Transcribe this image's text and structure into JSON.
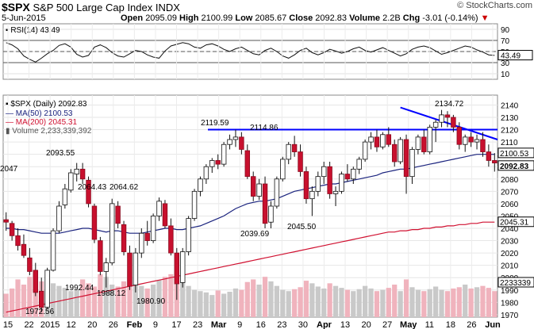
{
  "header": {
    "ticker": "$SPX",
    "name": "S&P 500 Large Cap Index",
    "exchange": "INDX",
    "date": "5-Jun-2015",
    "open_label": "Open",
    "open": "2095.09",
    "high_label": "High",
    "high": "2100.99",
    "low_label": "Low",
    "low": "2085.67",
    "close_label": "Close",
    "close": "2092.83",
    "volume_label": "Volume",
    "volume": "2.2B",
    "chg_label": "Chg",
    "chg": "-3.01 (-0.14%)",
    "brand": "© StockCharts.com"
  },
  "chart_data": {
    "type": "candlestick",
    "x_tick_labels": [
      "15",
      "22",
      "2015",
      "12",
      "20",
      "26",
      "Feb",
      "9",
      "17",
      "23",
      "Mar",
      "9",
      "16",
      "23",
      "30",
      "Apr",
      "13",
      "20",
      "27",
      "May",
      "11",
      "18",
      "26",
      "Jun"
    ],
    "rsi": {
      "label": "RSI(14)",
      "value": "43.49",
      "ticks": [
        "90",
        "70",
        "50",
        "30",
        "10"
      ],
      "ylim": [
        0,
        100
      ],
      "levels": [
        70,
        50,
        30
      ],
      "values": [
        66,
        62,
        55,
        42,
        36,
        31,
        38,
        46,
        52,
        61,
        64,
        58,
        45,
        40,
        43,
        58,
        62,
        57,
        48,
        42,
        40,
        46,
        52,
        50,
        44,
        40,
        38,
        51,
        60,
        63,
        66,
        64,
        58,
        56,
        62,
        64,
        60,
        54,
        50,
        55,
        58,
        52,
        46,
        44,
        52,
        56,
        50,
        42,
        38,
        44,
        52,
        56,
        48,
        44,
        48,
        54,
        51,
        47,
        50,
        55,
        58,
        52,
        49,
        53,
        57,
        52,
        47,
        42,
        46,
        54,
        58,
        60,
        57,
        51,
        45,
        48,
        52,
        56,
        60,
        58,
        53,
        49,
        44,
        43
      ]
    },
    "price": {
      "legend_main": "$SPX (Daily) 2092.83",
      "legend_ma50": "MA(50) 2100.53",
      "legend_ma200": "MA(200) 2045.31",
      "legend_volume": "Volume 2,233,339,392",
      "ylim": [
        1968,
        2148
      ],
      "y_ticks": [
        "2140",
        "2130",
        "2120",
        "2110",
        "2100",
        "2090",
        "2080",
        "2070",
        "2060",
        "2050",
        "2040",
        "2030",
        "2020",
        "2010",
        "2000",
        "1990",
        "1980",
        "1970"
      ],
      "resistance": 2120,
      "trendline": {
        "from": 2138,
        "to": 2112
      },
      "annotations": [
        "2119.59",
        "2114.86",
        "2134.72",
        "2093.55",
        "2064.43",
        "2064.62",
        "2039.69",
        "2045.50",
        "1992.44",
        "1988.12",
        "1980.90",
        "1972.56",
        "2047"
      ],
      "right_labels": {
        "ma50": "2100.53",
        "close": "2092.83",
        "ma200": "2045.31",
        "volume": "2233339"
      },
      "ohlc": [
        [
          2047,
          2053,
          2038,
          2045
        ],
        [
          2044,
          2046,
          2030,
          2034
        ],
        [
          2034,
          2040,
          2022,
          2026
        ],
        [
          2027,
          2035,
          2016,
          2018
        ],
        [
          2016,
          2024,
          2002,
          2005
        ],
        [
          2006,
          2012,
          1985,
          1988
        ],
        [
          1989,
          2000,
          1972,
          1976
        ],
        [
          1976,
          2008,
          1975,
          2006
        ],
        [
          2006,
          2040,
          2005,
          2038
        ],
        [
          2038,
          2062,
          2036,
          2058
        ],
        [
          2059,
          2076,
          2056,
          2072
        ],
        [
          2071,
          2088,
          2069,
          2085
        ],
        [
          2084,
          2093,
          2078,
          2088
        ],
        [
          2088,
          2093,
          2076,
          2080
        ],
        [
          2079,
          2082,
          2057,
          2060
        ],
        [
          2058,
          2060,
          2028,
          2031
        ],
        [
          2030,
          2033,
          2002,
          2005
        ],
        [
          2005,
          2016,
          1992,
          2012
        ],
        [
          2012,
          2064,
          2010,
          2060
        ],
        [
          2058,
          2062,
          2040,
          2044
        ],
        [
          2043,
          2046,
          2018,
          2021
        ],
        [
          2020,
          2026,
          1990,
          1993
        ],
        [
          1994,
          2024,
          1988,
          2020
        ],
        [
          2020,
          2040,
          2016,
          2036
        ],
        [
          2036,
          2046,
          2026,
          2030
        ],
        [
          2030,
          2052,
          2028,
          2050
        ],
        [
          2050,
          2065,
          2046,
          2062
        ],
        [
          2060,
          2063,
          2040,
          2042
        ],
        [
          2042,
          2048,
          2018,
          2020
        ],
        [
          2020,
          2024,
          1982,
          1995
        ],
        [
          1996,
          2024,
          1992,
          2021
        ],
        [
          2021,
          2050,
          2018,
          2048
        ],
        [
          2048,
          2072,
          2046,
          2070
        ],
        [
          2070,
          2082,
          2066,
          2080
        ],
        [
          2080,
          2092,
          2076,
          2090
        ],
        [
          2090,
          2097,
          2085,
          2095
        ],
        [
          2095,
          2100,
          2088,
          2092
        ],
        [
          2092,
          2110,
          2090,
          2108
        ],
        [
          2108,
          2116,
          2104,
          2112
        ],
        [
          2112,
          2120,
          2106,
          2114
        ],
        [
          2114,
          2118,
          2100,
          2104
        ],
        [
          2103,
          2108,
          2080,
          2082
        ],
        [
          2082,
          2086,
          2062,
          2066
        ],
        [
          2066,
          2080,
          2063,
          2076
        ],
        [
          2076,
          2082,
          2040,
          2044
        ],
        [
          2045,
          2062,
          2040,
          2058
        ],
        [
          2058,
          2082,
          2056,
          2080
        ],
        [
          2080,
          2098,
          2078,
          2096
        ],
        [
          2096,
          2110,
          2092,
          2108
        ],
        [
          2108,
          2115,
          2098,
          2102
        ],
        [
          2102,
          2108,
          2082,
          2086
        ],
        [
          2086,
          2090,
          2060,
          2064
        ],
        [
          2064,
          2074,
          2050,
          2070
        ],
        [
          2070,
          2086,
          2066,
          2082
        ],
        [
          2082,
          2094,
          2076,
          2090
        ],
        [
          2090,
          2094,
          2064,
          2068
        ],
        [
          2068,
          2074,
          2058,
          2070
        ],
        [
          2070,
          2086,
          2068,
          2084
        ],
        [
          2084,
          2092,
          2078,
          2080
        ],
        [
          2080,
          2090,
          2076,
          2088
        ],
        [
          2088,
          2098,
          2084,
          2096
        ],
        [
          2096,
          2112,
          2094,
          2110
        ],
        [
          2110,
          2118,
          2104,
          2114
        ],
        [
          2114,
          2120,
          2102,
          2106
        ],
        [
          2106,
          2118,
          2104,
          2116
        ],
        [
          2116,
          2122,
          2106,
          2108
        ],
        [
          2108,
          2112,
          2090,
          2094
        ],
        [
          2094,
          2114,
          2092,
          2112
        ],
        [
          2112,
          2116,
          2068,
          2082
        ],
        [
          2082,
          2106,
          2076,
          2104
        ],
        [
          2104,
          2116,
          2100,
          2114
        ],
        [
          2114,
          2120,
          2100,
          2102
        ],
        [
          2102,
          2124,
          2100,
          2122
        ],
        [
          2122,
          2128,
          2110,
          2126
        ],
        [
          2126,
          2136,
          2122,
          2132
        ],
        [
          2132,
          2135,
          2122,
          2130
        ],
        [
          2130,
          2132,
          2118,
          2122
        ],
        [
          2122,
          2126,
          2104,
          2108
        ],
        [
          2108,
          2116,
          2102,
          2114
        ],
        [
          2114,
          2118,
          2106,
          2110
        ],
        [
          2110,
          2116,
          2104,
          2112
        ],
        [
          2112,
          2118,
          2098,
          2102
        ],
        [
          2102,
          2108,
          2090,
          2095
        ],
        [
          2095,
          2101,
          2086,
          2093
        ]
      ],
      "ma50": [
        2040,
        2040,
        2039,
        2039,
        2038,
        2037,
        2036,
        2036,
        2036,
        2036,
        2037,
        2038,
        2039,
        2040,
        2040,
        2039,
        2038,
        2037,
        2038,
        2038,
        2037,
        2036,
        2036,
        2036,
        2037,
        2038,
        2039,
        2040,
        2040,
        2039,
        2039,
        2040,
        2041,
        2042,
        2044,
        2046,
        2048,
        2050,
        2053,
        2056,
        2058,
        2060,
        2061,
        2062,
        2062,
        2063,
        2064,
        2066,
        2068,
        2070,
        2071,
        2072,
        2073,
        2074,
        2075,
        2076,
        2076,
        2077,
        2078,
        2079,
        2080,
        2081,
        2082,
        2083,
        2085,
        2086,
        2087,
        2088,
        2088,
        2089,
        2090,
        2091,
        2092,
        2093,
        2094,
        2095,
        2096,
        2097,
        2098,
        2099,
        2100,
        2100,
        2100,
        2100
      ],
      "ma200": [
        1972,
        1973,
        1974,
        1975,
        1976,
        1977,
        1978,
        1979,
        1980,
        1981,
        1982,
        1983,
        1984,
        1985,
        1986,
        1987,
        1988,
        1989,
        1990,
        1991,
        1992,
        1993,
        1994,
        1995,
        1996,
        1997,
        1998,
        1999,
        2000,
        2001,
        2002,
        2003,
        2004,
        2005,
        2006,
        2007,
        2008,
        2009,
        2010,
        2011,
        2012,
        2013,
        2014,
        2015,
        2016,
        2017,
        2018,
        2019,
        2020,
        2021,
        2022,
        2023,
        2024,
        2025,
        2026,
        2027,
        2028,
        2029,
        2030,
        2031,
        2032,
        2033,
        2034,
        2035,
        2036,
        2037,
        2037,
        2038,
        2038,
        2039,
        2039,
        2040,
        2040,
        2041,
        2041,
        2042,
        2042,
        2043,
        2043,
        2044,
        2044,
        2045,
        2045,
        2045
      ],
      "volume": [
        0.36,
        0.44,
        0.58,
        0.5,
        0.62,
        0.72,
        0.55,
        0.64,
        0.52,
        0.48,
        0.45,
        0.4,
        0.43,
        0.58,
        0.52,
        0.47,
        0.66,
        0.62,
        0.5,
        0.47,
        0.55,
        0.72,
        0.6,
        0.48,
        0.44,
        0.5,
        0.57,
        0.62,
        0.66,
        0.7,
        0.58,
        0.48,
        0.42,
        0.4,
        0.38,
        0.34,
        0.41,
        0.36,
        0.39,
        0.44,
        0.42,
        0.54,
        0.58,
        0.5,
        0.62,
        0.55,
        0.48,
        0.42,
        0.4,
        0.43,
        0.46,
        0.56,
        0.52,
        0.47,
        0.44,
        0.52,
        0.48,
        0.45,
        0.42,
        0.4,
        0.43,
        0.48,
        0.44,
        0.4,
        0.42,
        0.45,
        0.5,
        0.4,
        0.58,
        0.46,
        0.42,
        0.4,
        0.43,
        0.47,
        0.42,
        0.4,
        0.44,
        0.46,
        0.5,
        0.44,
        0.46,
        0.48,
        0.45,
        0.4
      ]
    }
  }
}
